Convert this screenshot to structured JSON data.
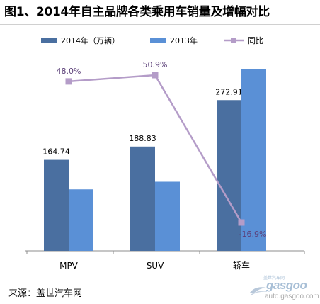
{
  "title": "图1、2014年自主品牌各类乘用车销量及增幅对比",
  "source": "来源：盖世汽车网",
  "watermark": {
    "logo": "gasgoo",
    "tagline": "盖世汽车网",
    "url": "auto.gasgoo.com"
  },
  "chart_data": {
    "type": "bar",
    "categories": [
      "MPV",
      "SUV",
      "轿车"
    ],
    "series": [
      {
        "name": "2014年（万辆）",
        "type": "bar",
        "color": "#4a6fa0",
        "values": [
          164.74,
          188.83,
          272.91
        ],
        "labels": [
          "164.74",
          "188.83",
          "272.91"
        ]
      },
      {
        "name": "2013年",
        "type": "bar",
        "color": "#5a90d6",
        "values": [
          111.3,
          125.1,
          328.4
        ]
      },
      {
        "name": "同比",
        "type": "line",
        "color": "#b49cc8",
        "values": [
          48.0,
          50.9,
          -16.9
        ],
        "labels": [
          "48.0%",
          "50.9%",
          "-16.9%"
        ]
      }
    ],
    "legend_position": "top",
    "ylim_bars": [
      0,
      340
    ],
    "ylim_line": [
      -20,
      55
    ],
    "grid": false
  }
}
